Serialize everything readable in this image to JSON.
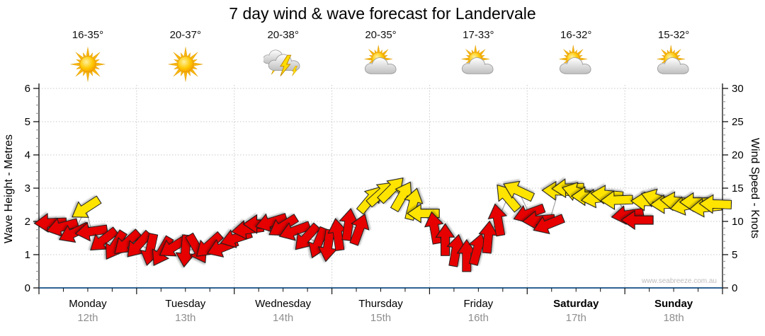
{
  "title": "7 day wind & wave forecast for Landervale",
  "watermark": "www.seabreeze.com.au",
  "axes": {
    "left_label": "Wave Height - Metres",
    "right_label": "Wind Speed - Knots",
    "left_ticks": [
      0,
      1,
      2,
      3,
      4,
      5,
      6
    ],
    "right_ticks": [
      0,
      5,
      10,
      15,
      20,
      25,
      30
    ]
  },
  "days": [
    {
      "name": "Monday",
      "date": "12th",
      "temp": "16-35°",
      "icon": "sunny",
      "weekend": false
    },
    {
      "name": "Tuesday",
      "date": "13th",
      "temp": "20-37°",
      "icon": "sunny",
      "weekend": false
    },
    {
      "name": "Wednesday",
      "date": "14th",
      "temp": "20-38°",
      "icon": "thunderstorm",
      "weekend": false
    },
    {
      "name": "Thursday",
      "date": "15th",
      "temp": "20-35°",
      "icon": "partly-cloudy",
      "weekend": false
    },
    {
      "name": "Friday",
      "date": "16th",
      "temp": "17-33°",
      "icon": "partly-cloudy",
      "weekend": false
    },
    {
      "name": "Saturday",
      "date": "17th",
      "temp": "16-32°",
      "icon": "partly-cloudy",
      "weekend": true
    },
    {
      "name": "Sunday",
      "date": "18th",
      "temp": "15-32°",
      "icon": "partly-cloudy",
      "weekend": true
    }
  ],
  "chart_data": {
    "type": "scatter",
    "subtype": "wind-direction-arrows",
    "title": "7 day wind & wave forecast for Landervale",
    "x_categories": [
      "Monday 12th",
      "Tuesday 13th",
      "Wednesday 14th",
      "Thursday 15th",
      "Friday 16th",
      "Saturday 17th",
      "Sunday 18th"
    ],
    "left_axis": {
      "label": "Wave Height - Metres",
      "min": 0,
      "max": 6,
      "tick_step": 1
    },
    "right_axis": {
      "label": "Wind Speed - Knots",
      "min": 0,
      "max": 30,
      "tick_step": 5
    },
    "grid": "dotted",
    "legend": "none",
    "arrow_colors": {
      "red": "#E60000",
      "yellow": "#FFE400"
    },
    "wind_arrows_columns": [
      "days_from_monday_start",
      "wind_speed_knots",
      "direction_deg_arrow_points_toward",
      "color"
    ],
    "wind_arrows": [
      [
        0.12,
        9.8,
        268,
        "red"
      ],
      [
        0.24,
        9.2,
        255,
        "red"
      ],
      [
        0.36,
        8.3,
        245,
        "red"
      ],
      [
        0.48,
        12.0,
        237,
        "yellow"
      ],
      [
        0.54,
        8.5,
        262,
        "red"
      ],
      [
        0.66,
        7.2,
        232,
        "red"
      ],
      [
        0.78,
        6.4,
        212,
        "red"
      ],
      [
        0.9,
        6.8,
        228,
        "red"
      ],
      [
        1.02,
        6.5,
        222,
        "red"
      ],
      [
        1.14,
        5.8,
        192,
        "red"
      ],
      [
        1.26,
        5.5,
        210,
        "red"
      ],
      [
        1.38,
        6.2,
        238,
        "red"
      ],
      [
        1.5,
        5.6,
        185,
        "red"
      ],
      [
        1.62,
        5.9,
        150,
        "red"
      ],
      [
        1.74,
        6.4,
        228,
        "red"
      ],
      [
        1.88,
        6.1,
        248,
        "red"
      ],
      [
        2.02,
        7.5,
        252,
        "red"
      ],
      [
        2.14,
        8.8,
        262,
        "red"
      ],
      [
        2.26,
        9.6,
        270,
        "red"
      ],
      [
        2.38,
        9.9,
        253,
        "red"
      ],
      [
        2.5,
        9.3,
        238,
        "red"
      ],
      [
        2.62,
        8.6,
        250,
        "red"
      ],
      [
        2.74,
        7.6,
        222,
        "red"
      ],
      [
        2.86,
        6.8,
        202,
        "red"
      ],
      [
        2.96,
        6.4,
        188,
        "red"
      ],
      [
        3.06,
        8.0,
        352,
        "red"
      ],
      [
        3.17,
        9.5,
        8,
        "red"
      ],
      [
        3.28,
        8.8,
        20,
        "red"
      ],
      [
        3.39,
        13.3,
        40,
        "yellow"
      ],
      [
        3.5,
        14.2,
        48,
        "yellow"
      ],
      [
        3.61,
        14.8,
        45,
        "yellow"
      ],
      [
        3.72,
        13.8,
        30,
        "yellow"
      ],
      [
        3.83,
        12.6,
        14,
        "yellow"
      ],
      [
        3.94,
        11.2,
        270,
        "yellow"
      ],
      [
        4.05,
        9.0,
        350,
        "red"
      ],
      [
        4.16,
        7.2,
        0,
        "red"
      ],
      [
        4.27,
        5.6,
        10,
        "red"
      ],
      [
        4.38,
        4.8,
        0,
        "red"
      ],
      [
        4.49,
        5.8,
        15,
        "red"
      ],
      [
        4.6,
        7.6,
        5,
        "red"
      ],
      [
        4.7,
        10.2,
        350,
        "red"
      ],
      [
        4.8,
        13.6,
        320,
        "yellow"
      ],
      [
        4.91,
        14.6,
        295,
        "yellow"
      ],
      [
        5.02,
        11.2,
        250,
        "red"
      ],
      [
        5.12,
        10.2,
        265,
        "red"
      ],
      [
        5.22,
        9.6,
        248,
        "red"
      ],
      [
        5.32,
        14.6,
        272,
        "yellow"
      ],
      [
        5.42,
        15.0,
        268,
        "yellow"
      ],
      [
        5.52,
        14.4,
        286,
        "yellow"
      ],
      [
        5.62,
        13.8,
        270,
        "yellow"
      ],
      [
        5.72,
        13.5,
        262,
        "yellow"
      ],
      [
        5.82,
        14.0,
        275,
        "yellow"
      ],
      [
        5.92,
        13.2,
        268,
        "yellow"
      ],
      [
        6.03,
        11.0,
        262,
        "red"
      ],
      [
        6.13,
        10.2,
        270,
        "red"
      ],
      [
        6.23,
        13.0,
        272,
        "yellow"
      ],
      [
        6.33,
        13.4,
        288,
        "yellow"
      ],
      [
        6.43,
        12.6,
        268,
        "yellow"
      ],
      [
        6.53,
        13.0,
        276,
        "yellow"
      ],
      [
        6.63,
        12.4,
        258,
        "yellow"
      ],
      [
        6.73,
        12.9,
        270,
        "yellow"
      ],
      [
        6.83,
        12.1,
        264,
        "yellow"
      ],
      [
        6.93,
        12.6,
        272,
        "yellow"
      ]
    ]
  }
}
